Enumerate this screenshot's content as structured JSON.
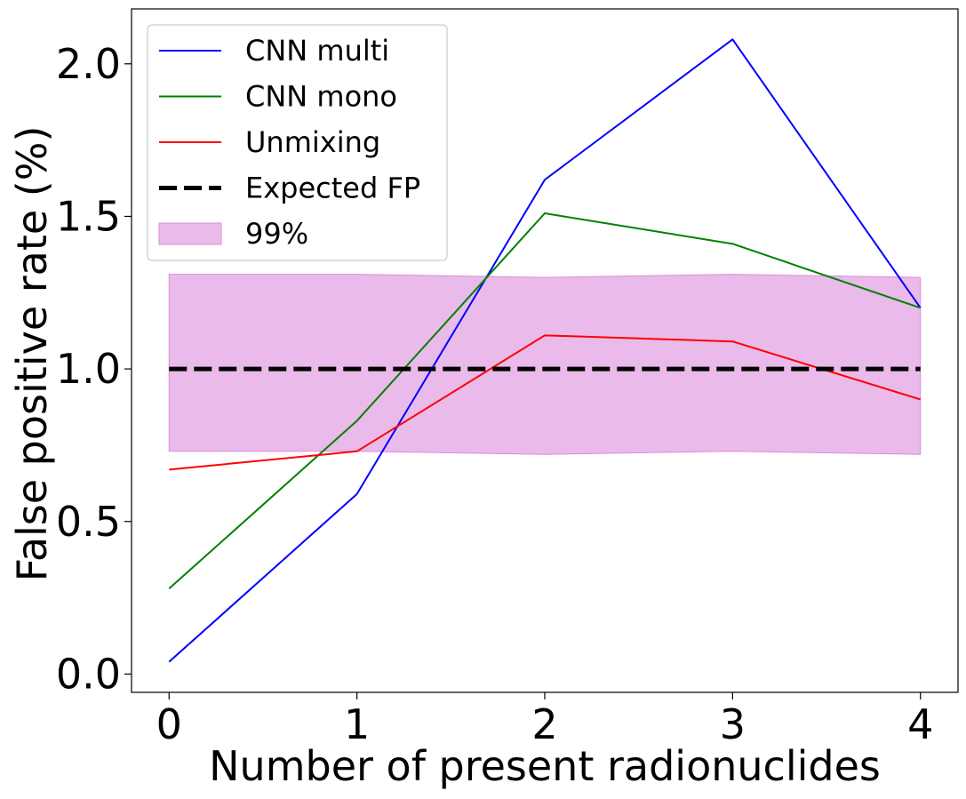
{
  "chart_data": {
    "type": "line",
    "title": "",
    "xlabel": "Number of present radionuclides",
    "ylabel": "False positive rate (%)",
    "x": [
      0,
      1,
      2,
      3,
      4
    ],
    "xticks": [
      0,
      1,
      2,
      3,
      4
    ],
    "xtick_labels": [
      "0",
      "1",
      "2",
      "3",
      "4"
    ],
    "yticks": [
      0.0,
      0.5,
      1.0,
      1.5,
      2.0
    ],
    "ytick_labels": [
      "0.0",
      "0.5",
      "1.0",
      "1.5",
      "2.0"
    ],
    "xlim": [
      -0.2,
      4.2
    ],
    "ylim": [
      -0.06,
      2.18
    ],
    "grid": false,
    "legend_position": "top-left",
    "series": [
      {
        "name": "CNN multi",
        "color": "#0000ff",
        "style": "solid",
        "values": [
          0.04,
          0.59,
          1.62,
          2.08,
          1.2
        ]
      },
      {
        "name": "CNN mono",
        "color": "#008000",
        "style": "solid",
        "values": [
          0.28,
          0.83,
          1.51,
          1.41,
          1.2
        ]
      },
      {
        "name": "Unmixing",
        "color": "#ff0000",
        "style": "solid",
        "values": [
          0.67,
          0.73,
          1.11,
          1.09,
          0.9
        ]
      },
      {
        "name": "Expected FP",
        "color": "#000000",
        "style": "dashed",
        "values": [
          1.0,
          1.0,
          1.0,
          1.0,
          1.0
        ]
      }
    ],
    "band": {
      "name": "99%",
      "color": "#dc8cdc",
      "lower": [
        0.73,
        0.73,
        0.72,
        0.73,
        0.72
      ],
      "upper": [
        1.31,
        1.31,
        1.3,
        1.31,
        1.3
      ]
    }
  }
}
